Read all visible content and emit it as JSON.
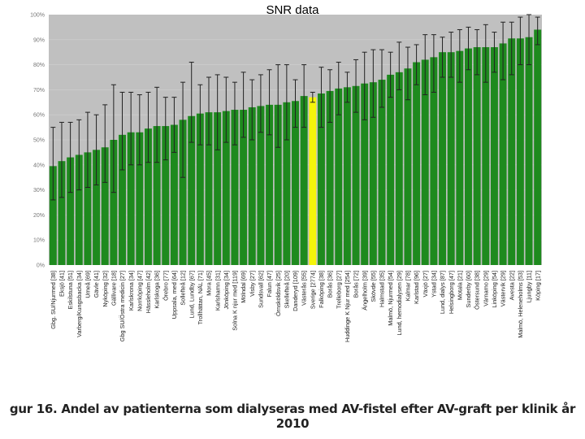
{
  "slide_title": "SNR data",
  "caption": "gur 16. Andel av patienterna som dialyseras med AV-fistel efter AV-graft per klinik år 2010",
  "colors": {
    "plot_bg": "#c0c0c0",
    "bar": "#1e8a1e",
    "highlight": "#f5f50a",
    "error_bar": "#222222"
  },
  "chart_data": {
    "type": "bar",
    "title": "",
    "xlabel": "",
    "ylabel": "",
    "ylim": [
      0,
      100
    ],
    "yticks": [
      "0%",
      "10%",
      "20%",
      "30%",
      "40%",
      "50%",
      "60%",
      "70%",
      "80%",
      "90%",
      "100%"
    ],
    "highlight_category": "Sverige [2774]",
    "categories": [
      "Gbg. SU/Njurmed [38]",
      "Eksjö [41]",
      "Eskilstuna [51]",
      "Varberg/Kungsbacka [34]",
      "Umeå [69]",
      "Gävle [41]",
      "Nyköping [32]",
      "Gällivare [18]",
      "Gbg SU/Östra medicin [27]",
      "Karlskrona [34]",
      "Norrköping [47]",
      "Hässleholm [42]",
      "Karlskoga [36]",
      "Örebro [77]",
      "Uppsala, med [64]",
      "Sollefteå [12]",
      "Lund, Lundby [67]",
      "Trollhättan, NÄL [71]",
      "Mora [45]",
      "Karlshamn [31]",
      "Jönköping [34]",
      "Solna K njur med [119]",
      "Mölndal [69]",
      "Visby [27]",
      "Sundsvall [62]",
      "Falun [47]",
      "Örnsköldsvik [25]",
      "Skellefteå [20]",
      "Danderyd [109]",
      "Västerås [55]",
      "Sverige [2774]",
      "Falköping [38]",
      "Borås [36]",
      "Trelleborg [27]",
      "Huddinge K Njur med [254]",
      "Borås [72]",
      "Ängelholm [39]",
      "Skövde [55]",
      "Halmstad [35]",
      "Malmö, Njurmed [54]",
      "Lund, hemodialysen [29]",
      "Kalmar [78]",
      "Karlstad [96]",
      "Växjö [27]",
      "Ystad [34]",
      "Lund, dialys [87]",
      "Helsingborg [47]",
      "Motala [21]",
      "Sunderby [60]",
      "Östersund [38]",
      "Värnamo [29]",
      "Linköping [54]",
      "Västervik [29]",
      "Avesta [22]",
      "Malmö, Heleneholms [53]",
      "Ljungby [11]",
      "Köping [17]"
    ],
    "values": [
      39.5,
      41.5,
      43,
      44,
      45,
      46,
      47,
      50,
      52,
      53,
      53,
      54.5,
      55.5,
      55.5,
      56,
      58,
      59.5,
      60.5,
      61,
      61,
      61.5,
      62,
      62,
      63,
      63.5,
      64,
      64,
      65,
      65.5,
      67.5,
      67,
      68.5,
      69.5,
      70.5,
      71,
      71.5,
      72.5,
      73,
      74,
      76,
      77,
      78.5,
      81,
      82,
      83,
      85,
      85,
      85.5,
      86.5,
      87,
      87,
      87,
      88.5,
      90.5,
      90.5,
      91,
      94
    ],
    "ci_low": [
      26,
      27,
      29,
      30,
      31,
      32,
      33,
      29,
      38,
      40,
      40,
      41,
      41,
      42,
      45,
      35,
      49,
      48,
      48,
      46,
      49,
      48,
      51,
      50,
      53,
      52,
      47,
      50,
      55,
      55,
      65,
      55,
      57,
      60,
      65,
      61,
      58,
      59,
      63,
      67,
      70,
      66,
      72,
      68,
      69,
      75,
      75,
      73,
      78,
      76,
      73,
      77,
      74,
      76,
      80,
      80,
      88
    ],
    "ci_high": [
      55,
      57,
      57,
      58,
      61,
      60,
      64,
      72,
      69,
      69,
      68,
      69,
      71,
      67,
      67,
      73,
      81,
      72,
      75,
      76,
      75,
      73,
      77,
      74,
      76,
      78,
      80,
      80,
      74,
      80,
      69,
      79,
      78,
      81,
      77,
      82,
      85,
      86,
      86,
      85,
      89,
      87,
      88,
      92,
      92,
      91,
      93,
      94,
      95,
      94,
      96,
      93,
      97,
      97,
      99,
      100,
      99
    ]
  }
}
